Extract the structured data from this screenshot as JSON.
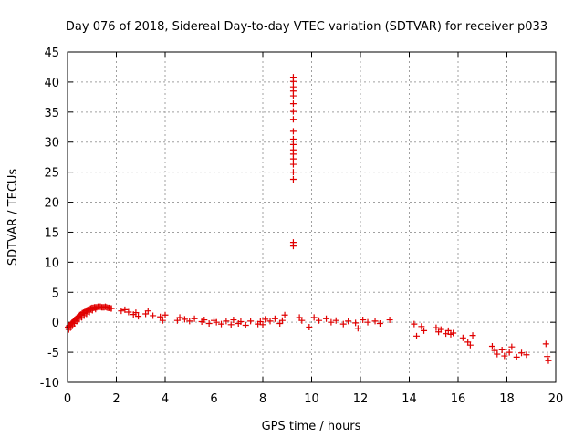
{
  "chart_data": {
    "type": "scatter",
    "title": "Day 076 of 2018, Sidereal Day-to-day VTEC variation (SDTVAR) for receiver p033",
    "xlabel": "GPS time / hours",
    "ylabel": "SDTVAR / TECUs",
    "xlim": [
      0,
      20
    ],
    "ylim": [
      -10,
      45
    ],
    "xticks": [
      0,
      2,
      4,
      6,
      8,
      10,
      12,
      14,
      16,
      18,
      20
    ],
    "yticks": [
      -10,
      -5,
      0,
      5,
      10,
      15,
      20,
      25,
      30,
      35,
      40,
      45
    ],
    "grid": true,
    "marker": "+",
    "color": "#e00000",
    "series": [
      {
        "name": "SDTVAR",
        "x": [
          0.02,
          0.06,
          0.1,
          0.14,
          0.18,
          0.22,
          0.26,
          0.3,
          0.35,
          0.4,
          0.45,
          0.5,
          0.55,
          0.6,
          0.65,
          0.7,
          0.75,
          0.8,
          0.85,
          0.9,
          0.95,
          1.0,
          1.05,
          1.1,
          1.15,
          1.2,
          1.25,
          1.3,
          1.35,
          1.4,
          1.45,
          1.5,
          1.55,
          1.6,
          1.65,
          1.7,
          1.75,
          1.8,
          0.05,
          0.12,
          0.2,
          0.28,
          0.38,
          0.48,
          0.58,
          0.68,
          0.78,
          0.9,
          1.02,
          1.15,
          2.2,
          2.35,
          2.5,
          2.7,
          2.8,
          2.9,
          3.2,
          3.3,
          3.5,
          3.8,
          3.9,
          4.0,
          4.5,
          4.6,
          4.8,
          5.0,
          5.2,
          5.5,
          5.6,
          5.8,
          6.0,
          6.1,
          6.3,
          6.5,
          6.7,
          6.8,
          7.0,
          7.1,
          7.3,
          7.5,
          7.8,
          7.9,
          8.0,
          8.1,
          8.3,
          8.5,
          8.7,
          8.8,
          8.9,
          9.25,
          9.25,
          9.25,
          9.25,
          9.25,
          9.25,
          9.25,
          9.25,
          9.25,
          9.25,
          9.25,
          9.25,
          9.25,
          9.25,
          9.25,
          9.25,
          9.25,
          9.25,
          9.25,
          9.5,
          9.6,
          9.9,
          10.1,
          10.3,
          10.6,
          10.8,
          11.0,
          11.3,
          11.5,
          11.8,
          11.9,
          12.1,
          12.3,
          12.6,
          12.8,
          13.2,
          14.2,
          14.3,
          14.5,
          14.6,
          15.1,
          15.2,
          15.3,
          15.5,
          15.6,
          15.7,
          15.8,
          16.2,
          16.4,
          16.5,
          16.6,
          17.4,
          17.5,
          17.6,
          17.8,
          17.9,
          18.1,
          18.2,
          18.4,
          18.6,
          18.8,
          19.6,
          19.65,
          19.7
        ],
        "y": [
          -0.8,
          -0.6,
          -0.5,
          -0.3,
          -0.1,
          0.0,
          0.2,
          0.4,
          0.6,
          0.8,
          1.0,
          1.2,
          1.3,
          1.5,
          1.6,
          1.7,
          1.9,
          2.0,
          2.1,
          2.2,
          2.3,
          2.4,
          2.4,
          2.5,
          2.5,
          2.5,
          2.6,
          2.6,
          2.6,
          2.5,
          2.5,
          2.5,
          2.6,
          2.5,
          2.4,
          2.4,
          2.3,
          2.3,
          -1.2,
          -0.9,
          -0.6,
          -0.2,
          0.2,
          0.5,
          0.8,
          1.1,
          1.4,
          1.7,
          2.0,
          2.2,
          1.9,
          2.1,
          1.7,
          1.3,
          1.6,
          1.0,
          1.4,
          1.9,
          1.1,
          0.9,
          0.3,
          1.2,
          0.3,
          0.8,
          0.5,
          0.2,
          0.6,
          0.1,
          0.4,
          -0.2,
          0.3,
          0.0,
          -0.3,
          0.2,
          -0.4,
          0.4,
          -0.2,
          0.1,
          -0.5,
          0.2,
          -0.3,
          0.1,
          -0.4,
          0.5,
          0.2,
          0.6,
          -0.2,
          0.3,
          1.2,
          13.3,
          12.7,
          23.8,
          25.0,
          26.3,
          27.2,
          28.0,
          28.7,
          29.6,
          30.5,
          31.8,
          33.8,
          35.1,
          36.4,
          37.7,
          38.5,
          39.2,
          40.1,
          40.8,
          0.8,
          0.3,
          -0.8,
          0.8,
          0.3,
          0.6,
          0.0,
          0.3,
          -0.3,
          0.2,
          -0.1,
          -1.0,
          0.4,
          0.0,
          0.2,
          -0.2,
          0.4,
          -0.3,
          -2.3,
          -0.7,
          -1.4,
          -0.9,
          -1.6,
          -1.2,
          -1.9,
          -1.4,
          -2.0,
          -1.8,
          -2.6,
          -3.3,
          -3.8,
          -2.2,
          -4.0,
          -4.7,
          -5.3,
          -4.6,
          -5.6,
          -5.0,
          -4.1,
          -5.8,
          -5.1,
          -5.4,
          -3.6,
          -5.7,
          -6.4
        ]
      }
    ]
  }
}
